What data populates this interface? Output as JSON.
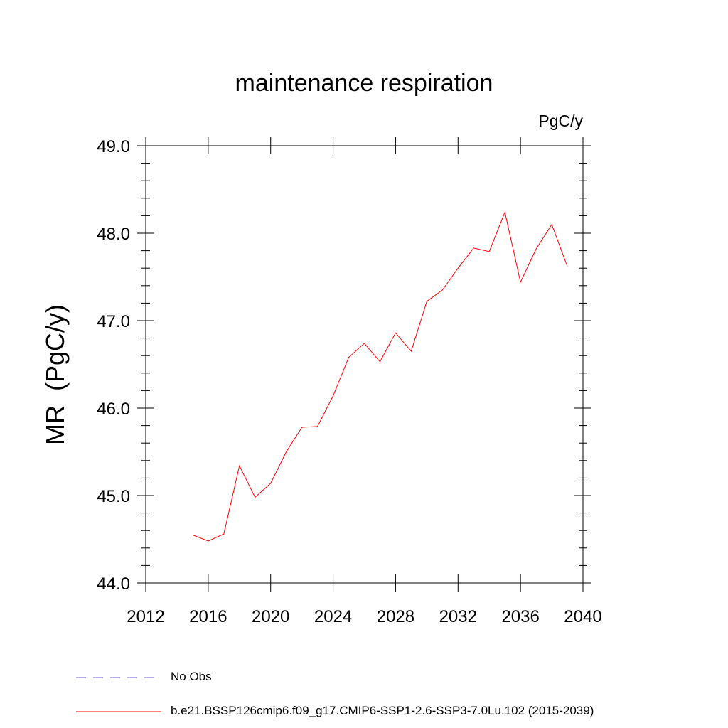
{
  "chart_data": {
    "type": "line",
    "title": "maintenance respiration",
    "units_label": "PgC/y",
    "ylabel": "MR  (PgC/y)",
    "xlabel": "",
    "xlim": [
      2012,
      2040
    ],
    "ylim": [
      44.0,
      49.0
    ],
    "xticks": [
      2012,
      2016,
      2020,
      2024,
      2028,
      2032,
      2036,
      2040
    ],
    "yticks": [
      "44.0",
      "45.0",
      "46.0",
      "47.0",
      "48.0",
      "49.0"
    ],
    "grid": false,
    "legend_position": "bottom",
    "series": [
      {
        "name": "No Obs",
        "color": "#6a5acd",
        "style": "dashed",
        "x": [],
        "y": []
      },
      {
        "name": "b.e21.BSSP126cmip6.f09_g17.CMIP6-SSP1-2.6-SSP3-7.0Lu.102 (2015-2039)",
        "color": "#ff0000",
        "style": "solid",
        "x": [
          2015,
          2016,
          2017,
          2018,
          2019,
          2020,
          2021,
          2022,
          2023,
          2024,
          2025,
          2026,
          2027,
          2028,
          2029,
          2030,
          2031,
          2032,
          2033,
          2034,
          2035,
          2036,
          2037,
          2038,
          2039
        ],
        "y": [
          44.55,
          44.48,
          44.56,
          45.34,
          44.98,
          45.14,
          45.5,
          45.78,
          45.79,
          46.14,
          46.58,
          46.74,
          46.53,
          46.86,
          46.65,
          47.22,
          47.35,
          47.6,
          47.83,
          47.79,
          48.24,
          47.44,
          47.82,
          48.1,
          47.62
        ]
      }
    ]
  }
}
